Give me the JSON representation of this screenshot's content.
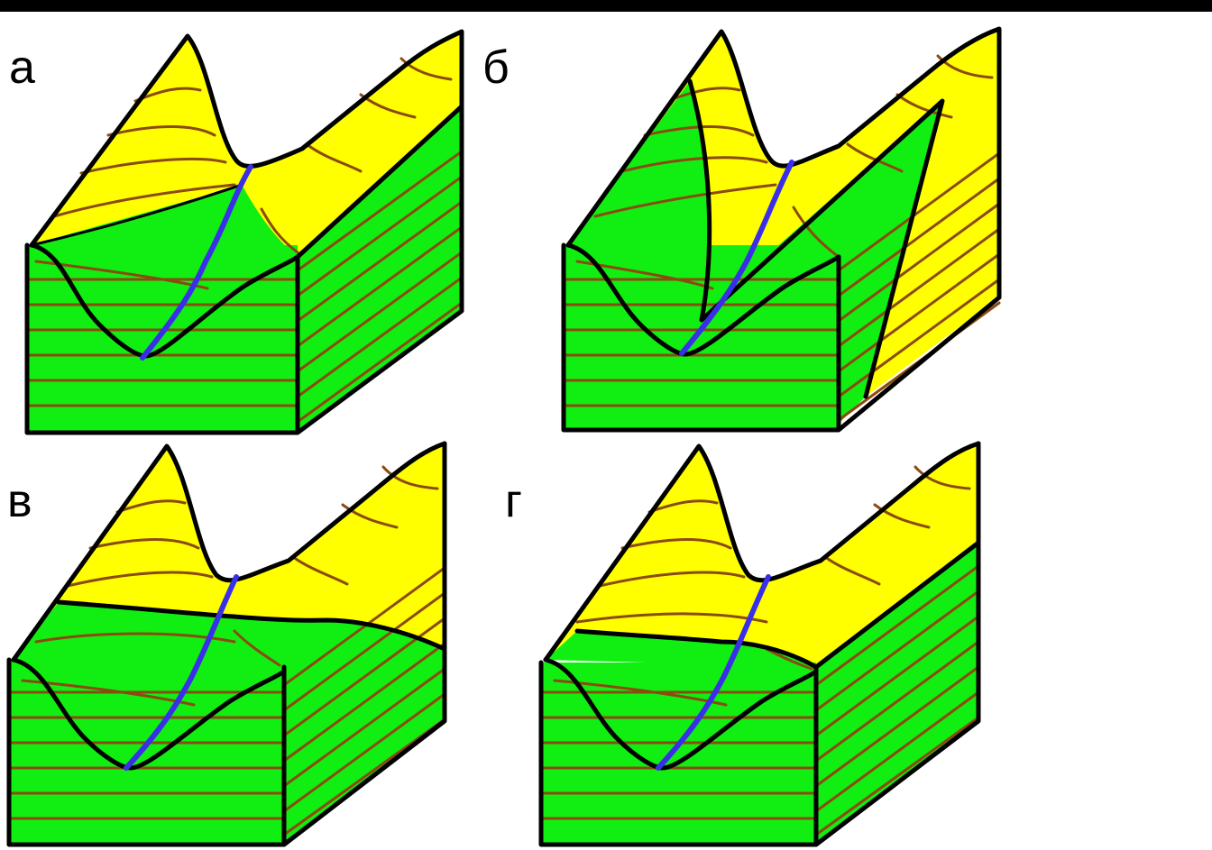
{
  "panels": [
    {
      "label": "а",
      "variant": "a"
    },
    {
      "label": "б",
      "variant": "b"
    },
    {
      "label": "в",
      "variant": "c"
    },
    {
      "label": "г",
      "variant": "d"
    }
  ],
  "colors": {
    "upper_layer": "#ffff00",
    "lower_layer": "#11ee11",
    "contour_lines": "#8b4a10",
    "river": "#3a2fe8",
    "outline": "#000000"
  }
}
